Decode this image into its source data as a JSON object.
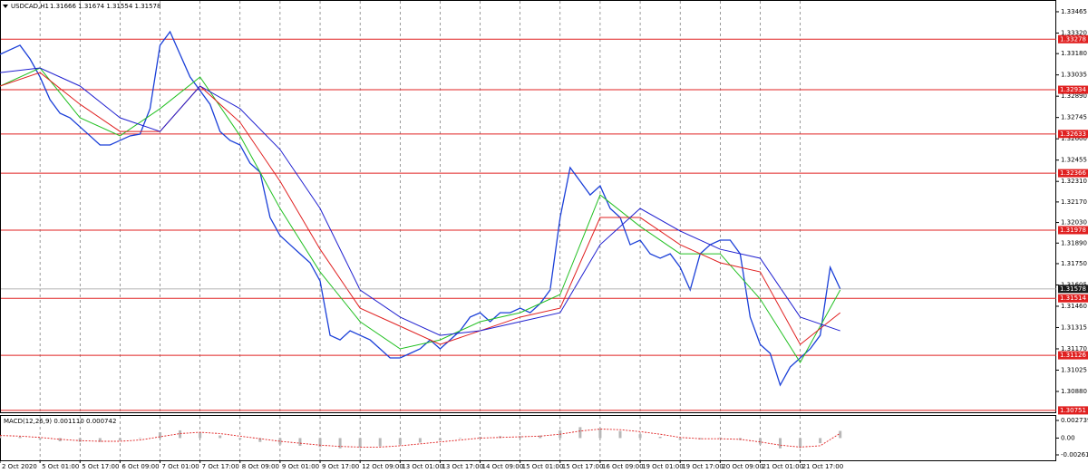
{
  "chart_data": {
    "type": "line",
    "symbol_label": "USDCAD,H1",
    "ohlc_label": "1.31666 1.31674 1.31554 1.31578",
    "xlim": [
      0,
      105.6
    ],
    "xticks": [
      {
        "value": 0,
        "label": "2 Oct 2020"
      },
      {
        "value": 4,
        "label": "5 Oct 01:00"
      },
      {
        "value": 8,
        "label": "5 Oct 17:00"
      },
      {
        "value": 12,
        "label": "6 Oct 09:00"
      },
      {
        "value": 16,
        "label": "7 Oct 01:00"
      },
      {
        "value": 20,
        "label": "7 Oct 17:00"
      },
      {
        "value": 24,
        "label": "8 Oct 09:00"
      },
      {
        "value": 28,
        "label": "9 Oct 01:00"
      },
      {
        "value": 32,
        "label": "9 Oct 17:00"
      },
      {
        "value": 36,
        "label": "12 Oct 09:00"
      },
      {
        "value": 40,
        "label": "13 Oct 01:00"
      },
      {
        "value": 44,
        "label": "13 Oct 17:00"
      },
      {
        "value": 48,
        "label": "14 Oct 09:00"
      },
      {
        "value": 52,
        "label": "15 Oct 01:00"
      },
      {
        "value": 56,
        "label": "15 Oct 17:00"
      },
      {
        "value": 60,
        "label": "16 Oct 09:00"
      },
      {
        "value": 64,
        "label": "19 Oct 01:00"
      },
      {
        "value": 68,
        "label": "19 Oct 17:00"
      },
      {
        "value": 72,
        "label": "20 Oct 09:00"
      },
      {
        "value": 76,
        "label": "21 Oct 01:00"
      },
      {
        "value": 80,
        "label": "21 Oct 17:00"
      }
    ],
    "ylim": [
      1.30738,
      1.33545
    ],
    "yticks": [
      1.33465,
      {
        "value": 1.3332,
        "label": "1.33320"
      },
      {
        "value": 1.3318,
        "label": "1.33180"
      },
      1.33035,
      {
        "value": 1.3289,
        "label": "1.32890"
      },
      1.32745,
      {
        "value": 1.326,
        "label": "1.32600"
      },
      1.32455,
      {
        "value": 1.3231,
        "label": "1.32310"
      },
      {
        "value": 1.3217,
        "label": "1.32170"
      },
      {
        "value": 1.3203,
        "label": "1.32030"
      },
      {
        "value": 1.3189,
        "label": "1.31890"
      },
      {
        "value": 1.3175,
        "label": "1.31750"
      },
      1.31605,
      {
        "value": 1.3146,
        "label": "1.31460"
      },
      1.31315,
      {
        "value": 1.3117,
        "label": "1.31170"
      },
      1.31025,
      {
        "value": 1.3088,
        "label": "1.30880"
      }
    ],
    "series": [
      {
        "color": "#1a3fd8",
        "x": [
          0,
          1,
          2,
          3,
          4,
          5,
          6,
          7,
          8,
          9,
          10,
          11,
          12,
          13,
          14,
          15,
          16,
          17,
          18,
          19,
          20,
          21,
          22,
          23,
          24,
          25,
          26,
          27,
          28,
          29,
          30,
          31,
          32,
          33,
          34,
          35,
          36,
          37,
          38,
          39,
          40,
          41,
          42,
          43,
          44,
          45,
          46,
          47,
          48,
          49,
          50,
          51,
          52,
          53,
          54,
          55,
          56,
          57,
          58,
          59,
          60,
          61,
          62,
          63,
          64,
          65,
          66,
          67,
          68,
          69,
          70,
          71,
          72,
          73,
          74,
          75,
          76,
          77,
          78,
          79,
          80,
          81,
          82,
          83,
          84
        ],
        "values": [
          1.33175,
          1.33206,
          1.33237,
          1.33144,
          1.33021,
          1.32866,
          1.32774,
          1.32743,
          1.32681,
          1.3262,
          1.32558,
          1.32558,
          1.32589,
          1.3262,
          1.32632,
          1.32805,
          1.33237,
          1.33329,
          1.33175,
          1.33021,
          1.32928,
          1.32835,
          1.3265,
          1.32589,
          1.32558,
          1.32434,
          1.32373,
          1.32064,
          1.31941,
          1.31879,
          1.31817,
          1.31756,
          1.31632,
          1.31262,
          1.31231,
          1.31293,
          1.31262,
          1.31231,
          1.3117,
          1.31108,
          1.31108,
          1.31139,
          1.3117,
          1.31231,
          1.3117,
          1.31231,
          1.31293,
          1.31386,
          1.31416,
          1.31355,
          1.31416,
          1.31416,
          1.31447,
          1.31416,
          1.31478,
          1.31571,
          1.32064,
          1.32404,
          1.32311,
          1.32218,
          1.3228,
          1.32126,
          1.32064,
          1.31879,
          1.3191,
          1.31817,
          1.31787,
          1.31817,
          1.31725,
          1.31571,
          1.31817,
          1.31879,
          1.3191,
          1.3191,
          1.31817,
          1.31386,
          1.312,
          1.31139,
          1.30923,
          1.31046,
          1.31108,
          1.3117,
          1.31262,
          1.31725,
          1.31578
        ]
      },
      {
        "color": "#22c022",
        "x": [
          0,
          4,
          8,
          12,
          16,
          20,
          24,
          28,
          32,
          36,
          40,
          44,
          48,
          52,
          56,
          60,
          64,
          68,
          72,
          76,
          80,
          84
        ],
        "values": [
          1.32959,
          1.33082,
          1.32743,
          1.3262,
          1.32805,
          1.33021,
          1.3262,
          1.32126,
          1.31694,
          1.31355,
          1.3117,
          1.31231,
          1.31355,
          1.31416,
          1.3154,
          1.32218,
          1.32003,
          1.31817,
          1.31817,
          1.31509,
          1.31077,
          1.31571
        ]
      },
      {
        "color": "#e02020",
        "x": [
          0,
          4,
          8,
          12,
          16,
          20,
          24,
          28,
          32,
          36,
          40,
          44,
          48,
          52,
          56,
          60,
          64,
          68,
          72,
          76,
          80,
          84
        ],
        "values": [
          1.32959,
          1.33051,
          1.32835,
          1.3265,
          1.3265,
          1.32959,
          1.32712,
          1.32311,
          1.31848,
          1.31447,
          1.31324,
          1.312,
          1.31293,
          1.31386,
          1.31447,
          1.32064,
          1.32064,
          1.31879,
          1.31756,
          1.31694,
          1.312,
          1.31416
        ]
      },
      {
        "color": "#2020d0",
        "x": [
          0,
          4,
          8,
          12,
          16,
          20,
          24,
          28,
          32,
          36,
          40,
          44,
          48,
          52,
          56,
          60,
          64,
          68,
          72,
          76,
          80,
          84
        ],
        "values": [
          1.33051,
          1.33082,
          1.32959,
          1.32743,
          1.3265,
          1.32959,
          1.32805,
          1.32527,
          1.32126,
          1.31571,
          1.31386,
          1.31262,
          1.31293,
          1.31355,
          1.31416,
          1.31879,
          1.32126,
          1.31972,
          1.31848,
          1.31787,
          1.31386,
          1.31293
        ]
      }
    ],
    "levels": [
      {
        "value": 1.33278,
        "color": "#e02020"
      },
      {
        "value": 1.32934,
        "color": "#e02020"
      },
      {
        "value": 1.32633,
        "color": "#e02020"
      },
      {
        "value": 1.32366,
        "color": "#e02020"
      },
      {
        "value": 1.31978,
        "color": "#e02020"
      },
      {
        "value": 1.31514,
        "color": "#e02020"
      },
      {
        "value": 1.31126,
        "color": "#e02020"
      },
      {
        "value": 1.30751,
        "color": "#e02020"
      }
    ],
    "current_price": 1.31578,
    "macd": {
      "label": "MACD(12,26,9) 0.001110 0.000742",
      "y2lim": [
        -0.003457,
        0.003584
      ],
      "y2ticks": [
        0.002739,
        {
          "value": 0,
          "label": "0.00"
        },
        -0.002612
      ],
      "histogram_color": "#b8b8b8",
      "signal_color": "#e02020",
      "x": [
        0,
        2,
        4,
        6,
        8,
        10,
        12,
        14,
        16,
        18,
        20,
        22,
        24,
        26,
        28,
        30,
        32,
        34,
        36,
        38,
        40,
        42,
        44,
        46,
        48,
        50,
        52,
        54,
        56,
        58,
        60,
        62,
        64,
        66,
        68,
        70,
        72,
        74,
        76,
        78,
        80,
        82,
        84
      ],
      "histogram": [
        0.0003,
        0.0002,
        -0.0002,
        -0.0005,
        -0.0006,
        -0.0006,
        -0.0004,
        -0.0001,
        0.0009,
        0.0012,
        0.0009,
        0.0004,
        -0.0002,
        -0.0006,
        -0.001,
        -0.0012,
        -0.0014,
        -0.0016,
        -0.0015,
        -0.0013,
        -0.001,
        -0.0007,
        -0.0004,
        -0.0001,
        0.0002,
        0.0003,
        0.0003,
        0.0004,
        0.0012,
        0.0017,
        0.0015,
        0.0011,
        0.0006,
        0.0002,
        -0.0003,
        -0.0002,
        0.0001,
        -0.0003,
        -0.001,
        -0.0016,
        -0.0015,
        -0.0008,
        0.00111
      ],
      "signal": [
        0.0004,
        0.0003,
        0.0001,
        -0.0002,
        -0.0004,
        -0.0005,
        -0.0005,
        -0.0003,
        0.0002,
        0.0007,
        0.0009,
        0.0007,
        0.0003,
        -0.0001,
        -0.0005,
        -0.0008,
        -0.0011,
        -0.0013,
        -0.0014,
        -0.0014,
        -0.0012,
        -0.0009,
        -0.0006,
        -0.0003,
        0,
        0.0001,
        0.0002,
        0.0003,
        0.0006,
        0.0011,
        0.0014,
        0.0013,
        0.001,
        0.0006,
        0.0001,
        -0.0001,
        -0.0001,
        -0.0002,
        -0.0006,
        -0.0011,
        -0.0014,
        -0.0012,
        0.00074
      ]
    }
  }
}
